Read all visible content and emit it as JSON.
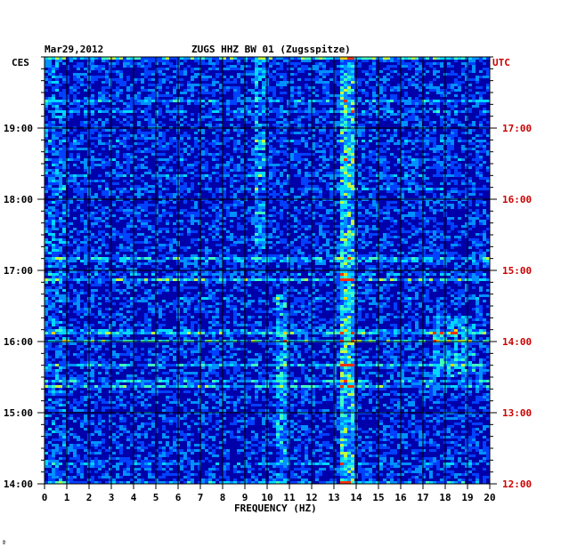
{
  "header": {
    "date": "Mar29,2012",
    "station": "ZUGS HHZ BW 01 (Zugsspitze)",
    "left_zone": "CES",
    "right_zone": "UTC"
  },
  "footer_mark": "ª",
  "colors": {
    "background": "#0000aa",
    "utc_text": "#cc0000",
    "grid": "#000000"
  },
  "chart_data": {
    "type": "heatmap",
    "title": "ZUGS HHZ BW 01 (Zugsspitze)",
    "date": "Mar29,2012",
    "xlabel": "FREQUENCY (HZ)",
    "xlim": [
      0,
      20
    ],
    "x_ticks": [
      "0",
      "1",
      "2",
      "3",
      "4",
      "5",
      "6",
      "7",
      "8",
      "9",
      "10",
      "11",
      "12",
      "13",
      "14",
      "15",
      "16",
      "17",
      "18",
      "19",
      "20"
    ],
    "y_left_label": "CES",
    "y_right_label": "UTC",
    "y_left_ticks": [
      "19:00",
      "18:00",
      "17:00",
      "16:00",
      "15:00",
      "14:00"
    ],
    "y_right_ticks": [
      "17:00",
      "16:00",
      "15:00",
      "14:00",
      "13:00",
      "12:00"
    ],
    "grid": true,
    "features": [
      {
        "freq": 13.6,
        "note": "persistent line"
      },
      {
        "freq": 10.7,
        "note": "activity 14:00-17:00 CES"
      },
      {
        "freq": 9.7,
        "note": "activity 17:00-19:00 CES"
      },
      {
        "freq": 18.5,
        "note": "activity 15:30-16:15 CES"
      }
    ]
  }
}
